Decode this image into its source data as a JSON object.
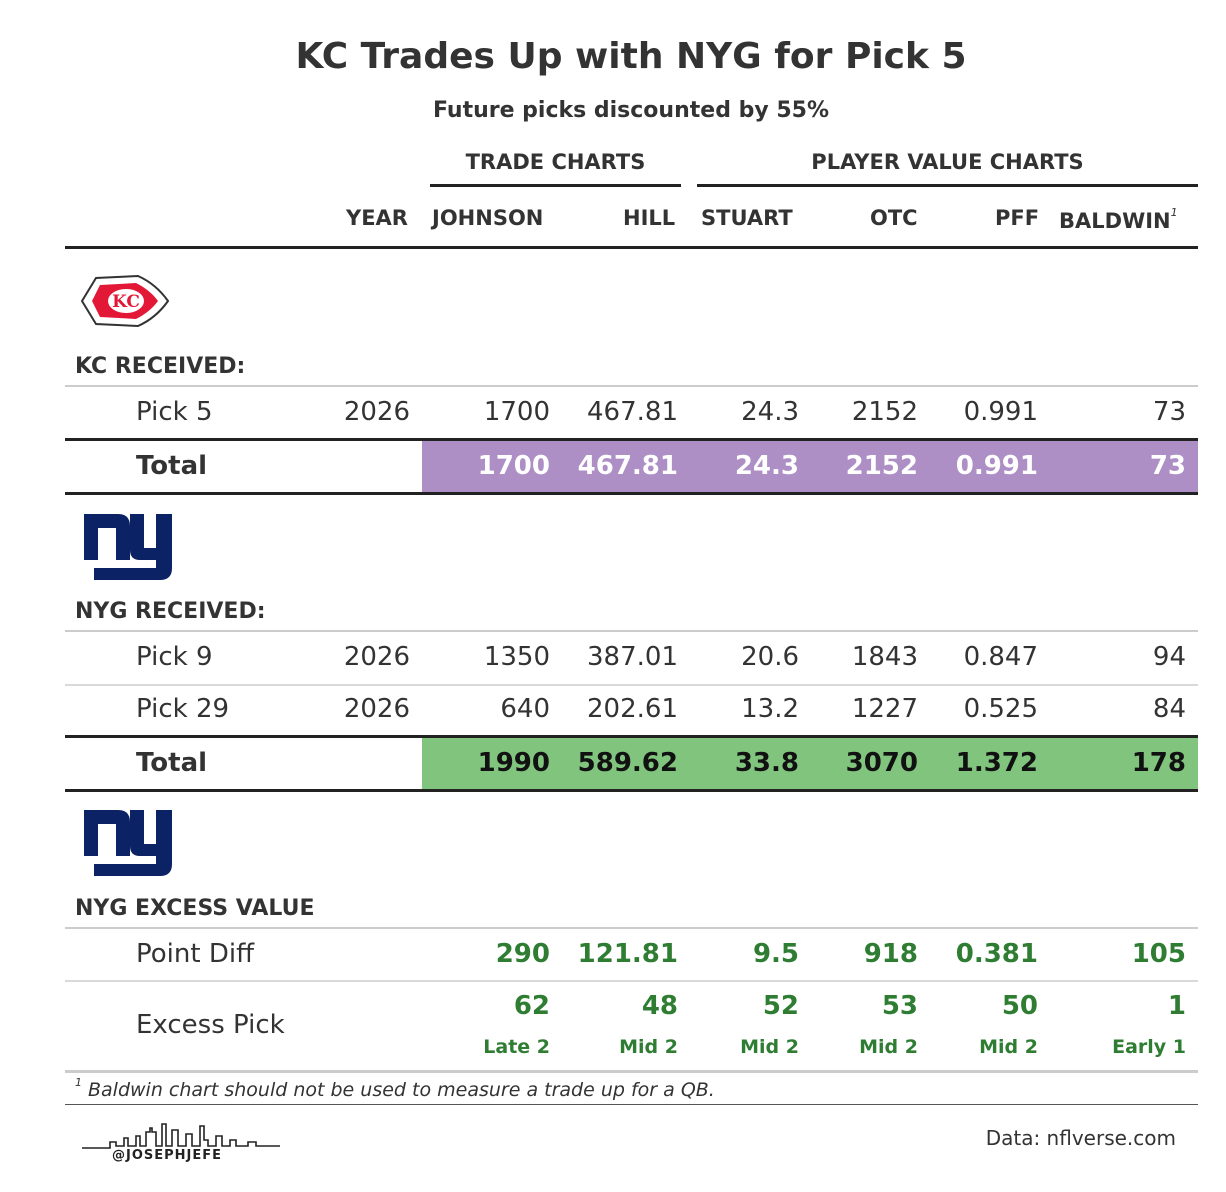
{
  "title": "KC Trades Up with NYG for Pick 5",
  "subtitle": "Future picks discounted by 55%",
  "spanners": {
    "trade": "TRADE CHARTS",
    "player": "PLAYER VALUE CHARTS"
  },
  "columns": {
    "year": "YEAR",
    "johnson": "JOHNSON",
    "hill": "HILL",
    "stuart": "STUART",
    "otc": "OTC",
    "pff": "PFF",
    "baldwin": "BALDWIN",
    "baldwin_note": "1"
  },
  "kc": {
    "label": "KC RECEIVED:",
    "rows": [
      {
        "pick": "Pick 5",
        "year": "2026",
        "johnson": "1700",
        "hill": "467.81",
        "stuart": "24.3",
        "otc": "2152",
        "pff": "0.991",
        "baldwin": "73"
      }
    ],
    "total": {
      "label": "Total",
      "johnson": "1700",
      "hill": "467.81",
      "stuart": "24.3",
      "otc": "2152",
      "pff": "0.991",
      "baldwin": "73"
    }
  },
  "nyg": {
    "label": "NYG RECEIVED:",
    "rows": [
      {
        "pick": "Pick 9",
        "year": "2026",
        "johnson": "1350",
        "hill": "387.01",
        "stuart": "20.6",
        "otc": "1843",
        "pff": "0.847",
        "baldwin": "94"
      },
      {
        "pick": "Pick 29",
        "year": "2026",
        "johnson": "640",
        "hill": "202.61",
        "stuart": "13.2",
        "otc": "1227",
        "pff": "0.525",
        "baldwin": "84"
      }
    ],
    "total": {
      "label": "Total",
      "johnson": "1990",
      "hill": "589.62",
      "stuart": "33.8",
      "otc": "3070",
      "pff": "1.372",
      "baldwin": "178"
    }
  },
  "excess": {
    "label": "NYG EXCESS VALUE",
    "diff": {
      "label": "Point Diff",
      "johnson": "290",
      "hill": "121.81",
      "stuart": "9.5",
      "otc": "918",
      "pff": "0.381",
      "baldwin": "105"
    },
    "pick": {
      "label": "Excess Pick",
      "johnson": "62",
      "hill": "48",
      "stuart": "52",
      "otc": "53",
      "pff": "50",
      "baldwin": "1",
      "johnson_sub": "Late 2",
      "hill_sub": "Mid 2",
      "stuart_sub": "Mid 2",
      "otc_sub": "Mid 2",
      "pff_sub": "Mid 2",
      "baldwin_sub": "Early 1"
    }
  },
  "footnote": {
    "marker": "1",
    "text": "Baldwin chart should not be used to measure a trade up for a QB."
  },
  "source": "Data: nflverse.com",
  "handle": "@JOSEPHJEFE",
  "colors": {
    "kc_total_band": "#ad8fc6",
    "nyg_total_band": "#80c47e",
    "excess_text": "#2e7d32",
    "kc_red": "#e31837",
    "nyg_blue": "#0b2265"
  },
  "icons": [
    "kc-arrowhead-logo",
    "ny-giants-logo",
    "skyline-icon"
  ]
}
